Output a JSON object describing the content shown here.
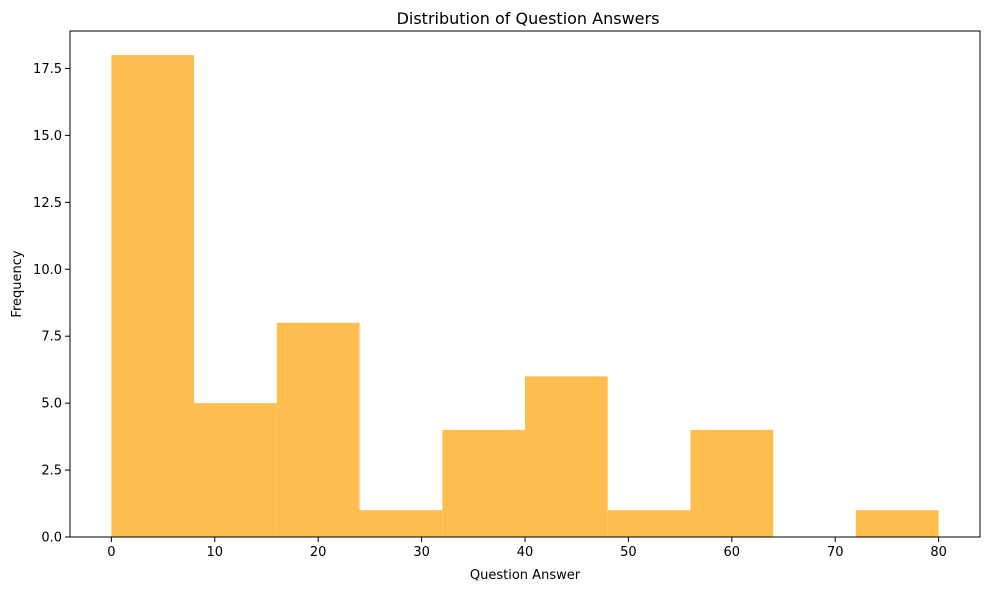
{
  "chart_data": {
    "type": "bar",
    "subtype": "histogram",
    "title": "Distribution of Question Answers",
    "xlabel": "Question Answer",
    "ylabel": "Frequency",
    "bins": [
      {
        "start": 0,
        "end": 8,
        "count": 18
      },
      {
        "start": 8,
        "end": 16,
        "count": 5
      },
      {
        "start": 16,
        "end": 24,
        "count": 8
      },
      {
        "start": 24,
        "end": 32,
        "count": 1
      },
      {
        "start": 32,
        "end": 40,
        "count": 4
      },
      {
        "start": 40,
        "end": 48,
        "count": 6
      },
      {
        "start": 48,
        "end": 56,
        "count": 1
      },
      {
        "start": 56,
        "end": 64,
        "count": 4
      },
      {
        "start": 64,
        "end": 72,
        "count": 0
      },
      {
        "start": 72,
        "end": 80,
        "count": 1
      }
    ],
    "xlim": [
      -4,
      84
    ],
    "ylim": [
      0,
      18.9
    ],
    "xticks": [
      0,
      10,
      20,
      30,
      40,
      50,
      60,
      70,
      80
    ],
    "xtick_labels": [
      "0",
      "10",
      "20",
      "30",
      "40",
      "50",
      "60",
      "70",
      "80"
    ],
    "yticks": [
      0,
      2.5,
      5,
      7.5,
      10,
      12.5,
      15,
      17.5
    ],
    "ytick_labels": [
      "0.0",
      "2.5",
      "5.0",
      "7.5",
      "10.0",
      "12.5",
      "15.0",
      "17.5"
    ],
    "bar_color": "#fdbe4f",
    "grid": false,
    "legend": "none"
  }
}
